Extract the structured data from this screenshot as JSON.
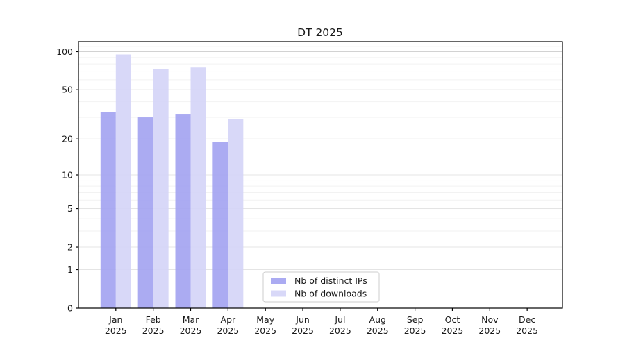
{
  "chart_data": {
    "type": "bar",
    "title": "DT 2025",
    "categories": [
      "Jan",
      "Feb",
      "Mar",
      "Apr",
      "May",
      "Jun",
      "Jul",
      "Aug",
      "Sep",
      "Oct",
      "Nov",
      "Dec"
    ],
    "tick_year": "2025",
    "series": [
      {
        "name": "Nb of distinct IPs",
        "color": "#a2a2f1",
        "values": [
          33,
          30,
          32,
          19,
          0,
          0,
          0,
          0,
          0,
          0,
          0,
          0
        ]
      },
      {
        "name": "Nb of downloads",
        "color": "#d4d4f7",
        "values": [
          95,
          73,
          75,
          29,
          0,
          0,
          0,
          0,
          0,
          0,
          0,
          0
        ]
      }
    ],
    "bar_opacity": 0.9,
    "yscale": "log1p",
    "yticks": [
      0,
      1,
      2,
      5,
      10,
      20,
      50,
      100
    ],
    "minor_gridlines": [
      3,
      4,
      6,
      7,
      8,
      9,
      30,
      40,
      60,
      70,
      80,
      90,
      110
    ],
    "ylim": [
      0,
      120
    ],
    "grid": true,
    "legend": {
      "position": "lower-center-inside",
      "entries": [
        "Nb of distinct IPs",
        "Nb of downloads"
      ]
    },
    "xlabel": "",
    "ylabel": "",
    "axis_color": "#000000",
    "grid_major_color": "#e4e4e4",
    "grid_minor_color": "#f2f2f2",
    "background": "#ffffff"
  }
}
